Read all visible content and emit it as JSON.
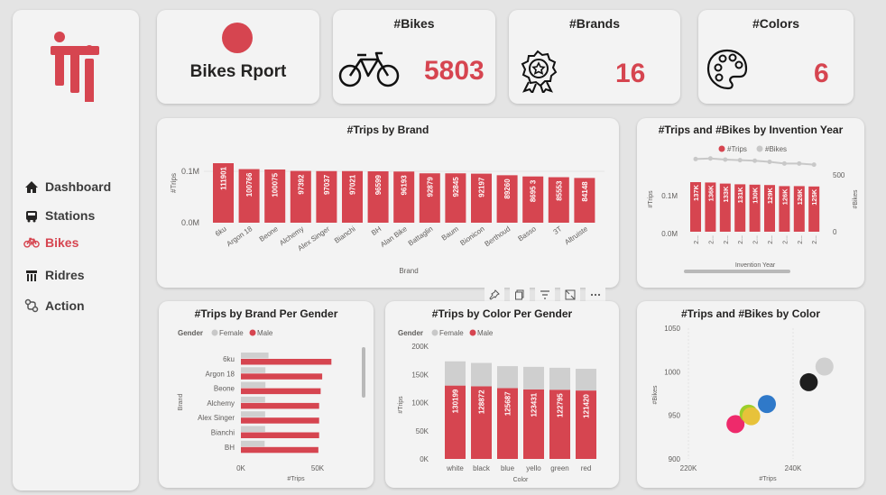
{
  "colors": {
    "accent": "#d64550",
    "gray": "#cfcfcf",
    "card": "#f3f3f3"
  },
  "nav": {
    "items": [
      {
        "label": "Dashboard",
        "icon": "home-icon"
      },
      {
        "label": "Stations",
        "icon": "bus-icon"
      },
      {
        "label": "Bikes",
        "icon": "bike-icon"
      },
      {
        "label": "Ridres",
        "icon": "shop-icon"
      },
      {
        "label": "Action",
        "icon": "route-icon"
      }
    ]
  },
  "header": {
    "title": "Bikes Rport"
  },
  "kpis": {
    "bikes": {
      "title": "#Bikes",
      "value": "5803"
    },
    "brands": {
      "title": "#Brands",
      "value": "16"
    },
    "colors": {
      "title": "#Colors",
      "value": "6"
    }
  },
  "chart_data": [
    {
      "id": "trips_by_brand",
      "type": "bar",
      "title": "#Trips by Brand",
      "xlabel": "Brand",
      "ylabel": "#Trips",
      "yticks": [
        "0.0M",
        "0.1M"
      ],
      "categories": [
        "6ku",
        "Argon 18",
        "Beone",
        "Alchemy",
        "Alex Singer",
        "Bianchi",
        "BH",
        "Alan Bike",
        "Battaglin",
        "Baum",
        "Bionicon",
        "Berthoud",
        "Basso",
        "3T",
        "Altruiste"
      ],
      "values": [
        111901,
        100766,
        100075,
        97392,
        97037,
        97021,
        96599,
        96193,
        92879,
        92845,
        92197,
        89260,
        86953,
        85553,
        84148
      ],
      "labels": [
        "111901",
        "100766",
        "100075",
        "97392",
        "97037",
        "97021",
        "96599",
        "96193",
        "92879",
        "92845",
        "92197",
        "89260",
        "8695 3",
        "85553",
        "84148"
      ]
    },
    {
      "id": "trips_bikes_by_year",
      "type": "bar",
      "title": "#Trips and #Bikes by Invention Year",
      "legend": [
        "#Trips",
        "#Bikes"
      ],
      "xlabel": "Invention Year",
      "ylabel": "#Trips",
      "y2label": "#Bikes",
      "yticks": [
        "0.0M",
        "0.1M"
      ],
      "y2ticks": [
        "0",
        "500"
      ],
      "categories": [
        "2...",
        "2...",
        "2...",
        "2...",
        "2...",
        "2...",
        "2...",
        "2...",
        "2..."
      ],
      "values": [
        137000,
        136000,
        133000,
        131000,
        130000,
        129000,
        126000,
        126000,
        125000
      ],
      "labels": [
        "137K",
        "136K",
        "133K",
        "131K",
        "130K",
        "129K",
        "126K",
        "126K",
        "125K"
      ],
      "bikes": [
        640,
        645,
        635,
        630,
        625,
        615,
        600,
        600,
        590
      ]
    },
    {
      "id": "trips_by_brand_gender",
      "type": "bar",
      "title": "#Trips by Brand Per Gender",
      "legend_title": "Gender",
      "legend": [
        "Female",
        "Male"
      ],
      "ylabel": "Brand",
      "xlabel": "#Trips",
      "xticks": [
        "0K",
        "50K"
      ],
      "categories": [
        "6ku",
        "Argon 18",
        "Beone",
        "Alchemy",
        "Alex Singer",
        "Bianchi",
        "BH"
      ],
      "female": [
        18000,
        16000,
        16000,
        15800,
        15800,
        15800,
        15500
      ],
      "male": [
        59000,
        53000,
        52000,
        51000,
        51000,
        51000,
        50500
      ]
    },
    {
      "id": "trips_by_color_gender",
      "type": "bar",
      "title": "#Trips by Color Per Gender",
      "legend_title": "Gender",
      "legend": [
        "Female",
        "Male"
      ],
      "xlabel": "Color",
      "ylabel": "#Trips",
      "yticks": [
        "0K",
        "50K",
        "100K",
        "150K",
        "200K"
      ],
      "categories": [
        "white",
        "black",
        "blue",
        "yello",
        "green",
        "red"
      ],
      "male": [
        130199,
        128872,
        125687,
        123431,
        122795,
        121420
      ],
      "male_labels": [
        "130199",
        "128872",
        "125687",
        "123431",
        "122795",
        "121420"
      ],
      "female": [
        43000,
        41500,
        39000,
        40000,
        39000,
        38500
      ]
    },
    {
      "id": "trips_bikes_by_color",
      "type": "scatter",
      "title": "#Trips and #Bikes by Color",
      "xlabel": "#Trips",
      "ylabel": "#Bikes",
      "xticks": [
        "220K",
        "240K"
      ],
      "yticks": [
        "900",
        "950",
        "1000",
        "1050"
      ],
      "points": [
        {
          "x": 229000,
          "y": 940,
          "color": "#ee2a6b"
        },
        {
          "x": 231500,
          "y": 952,
          "color": "#9ccf2a"
        },
        {
          "x": 232000,
          "y": 949,
          "color": "#e7c23a"
        },
        {
          "x": 235000,
          "y": 963,
          "color": "#2f79c9"
        },
        {
          "x": 243000,
          "y": 988,
          "color": "#1e1e1e"
        },
        {
          "x": 246000,
          "y": 1006,
          "color": "#d0d0d0"
        }
      ]
    }
  ]
}
